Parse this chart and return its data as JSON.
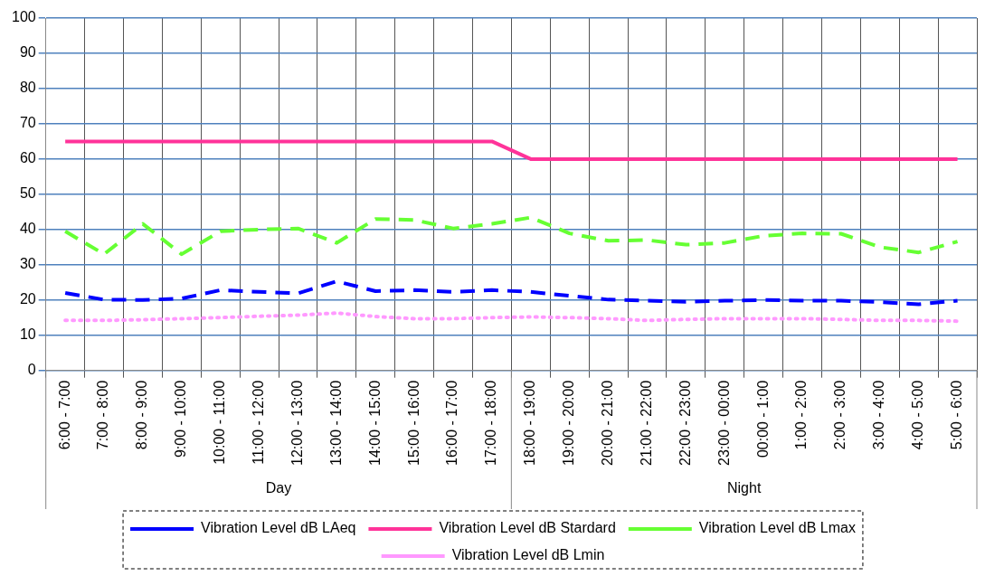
{
  "chart_data": {
    "type": "line",
    "categories": [
      "6:00 - 7:00",
      "7:00 - 8:00",
      "8:00 - 9:00",
      "9:00 - 10:00",
      "10:00 - 11:00",
      "11:00 - 12:00",
      "12:00 - 13:00",
      "13:00 - 14:00",
      "14:00 - 15:00",
      "15:00 - 16:00",
      "16:00 - 17:00",
      "17:00 - 18:00",
      "18:00 - 19:00",
      "19:00 - 20:00",
      "20:00 - 21:00",
      "21:00 - 22:00",
      "22:00 - 23:00",
      "23:00 - 00:00",
      "00:00 - 1:00",
      "1:00 - 2:00",
      "2:00 - 3:00",
      "3:00 - 4:00",
      "4:00 - 5:00",
      "5:00 - 6:00"
    ],
    "series": [
      {
        "name": "Vibration Level dB LAeq",
        "color": "#0000ff",
        "line_style": "dashed",
        "values": [
          22,
          20.1,
          20,
          20.4,
          22.8,
          22.3,
          21.9,
          25.3,
          22.5,
          22.8,
          22.3,
          22.8,
          22.3,
          21.2,
          20.1,
          19.8,
          19.5,
          19.8,
          20,
          19.8,
          19.8,
          19.4,
          18.8,
          19.8
        ]
      },
      {
        "name": "Vibration Level dB Stardard",
        "color": "#ff3399",
        "line_style": "solid",
        "values": [
          65,
          65,
          65,
          65,
          65,
          65,
          65,
          65,
          65,
          65,
          65,
          65,
          60,
          60,
          60,
          60,
          60,
          60,
          60,
          60,
          60,
          60,
          60,
          60
        ]
      },
      {
        "name": "Vibration Level dB Lmax",
        "color": "#66ff33",
        "line_style": "dashed",
        "values": [
          39.5,
          33,
          41.6,
          33,
          39.5,
          40,
          40.3,
          36.2,
          43,
          42.7,
          40.3,
          41.6,
          43.4,
          38.9,
          36.8,
          37,
          35.7,
          36.2,
          38.2,
          38.9,
          38.8,
          35,
          33.5,
          36.6
        ]
      },
      {
        "name": "Vibration Level dB Lmin",
        "color": "#ff99ff",
        "line_style": "dotted",
        "values": [
          14.2,
          14.2,
          14.4,
          14.7,
          15,
          15.4,
          15.7,
          16.3,
          15.3,
          14.7,
          14.7,
          15,
          15.2,
          15,
          14.7,
          14.2,
          14.5,
          14.7,
          14.7,
          14.7,
          14.5,
          14.2,
          14.2,
          14
        ]
      }
    ],
    "ylim": [
      0,
      100
    ],
    "yticks": [
      0,
      10,
      20,
      30,
      40,
      50,
      60,
      70,
      80,
      90,
      100
    ],
    "grid": true,
    "legend": "bottom",
    "marker": "none",
    "annotations": [
      "Day",
      "Night"
    ]
  }
}
